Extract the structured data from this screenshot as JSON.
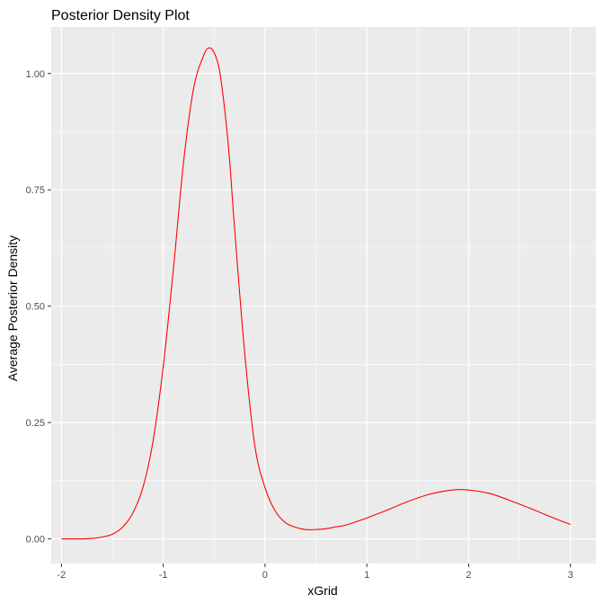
{
  "chart_data": {
    "type": "line",
    "title": "Posterior Density Plot",
    "xlabel": "xGrid",
    "ylabel": "Average Posterior Density",
    "xlim": [
      -2.1,
      3.25
    ],
    "ylim": [
      -0.053,
      1.1
    ],
    "x_ticks": [
      -2,
      -1,
      0,
      1,
      2,
      3
    ],
    "x_tick_labels": [
      "-2",
      "-1",
      "0",
      "1",
      "2",
      "3"
    ],
    "y_ticks": [
      0.0,
      0.25,
      0.5,
      0.75,
      1.0
    ],
    "y_tick_labels": [
      "0.00",
      "0.25",
      "0.50",
      "0.75",
      "1.00"
    ],
    "grid": true,
    "colors": {
      "panel": "#ebebeb",
      "grid": "#ffffff",
      "line": "#ff0000",
      "tick": "#333333"
    },
    "series": [
      {
        "color": "#ff0000",
        "x": [
          -2.0,
          -1.9,
          -1.8,
          -1.7,
          -1.6,
          -1.5,
          -1.4,
          -1.3,
          -1.2,
          -1.1,
          -1.0,
          -0.9,
          -0.8,
          -0.7,
          -0.6,
          -0.55,
          -0.5,
          -0.45,
          -0.4,
          -0.35,
          -0.3,
          -0.2,
          -0.1,
          0.0,
          0.1,
          0.2,
          0.3,
          0.4,
          0.5,
          0.6,
          0.7,
          0.8,
          1.0,
          1.2,
          1.4,
          1.6,
          1.8,
          1.9,
          2.0,
          2.2,
          2.4,
          2.6,
          2.8,
          3.0
        ],
        "y": [
          0.0,
          0.0,
          0.0,
          0.001,
          0.004,
          0.01,
          0.025,
          0.055,
          0.11,
          0.21,
          0.37,
          0.58,
          0.81,
          0.97,
          1.04,
          1.055,
          1.045,
          1.01,
          0.93,
          0.82,
          0.67,
          0.4,
          0.2,
          0.11,
          0.06,
          0.035,
          0.025,
          0.02,
          0.02,
          0.022,
          0.026,
          0.03,
          0.045,
          0.062,
          0.08,
          0.095,
          0.104,
          0.106,
          0.105,
          0.098,
          0.083,
          0.066,
          0.048,
          0.031
        ]
      }
    ]
  }
}
